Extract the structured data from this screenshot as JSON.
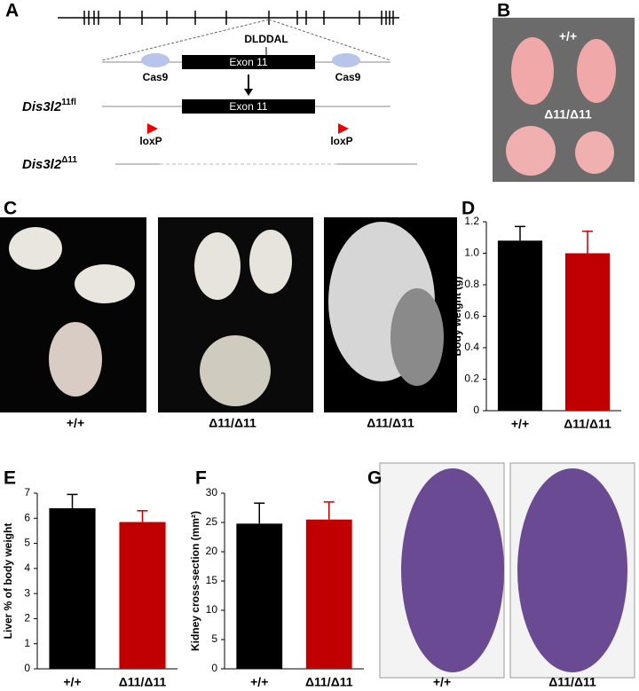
{
  "panel_labels": [
    "A",
    "B",
    "C",
    "D",
    "E",
    "F",
    "G"
  ],
  "diagram": {
    "motif": "DLDDAL",
    "exon_top": "Exon 11",
    "exon_fl": "Exon 11",
    "cas9_left": "Cas9",
    "cas9_right": "Cas9",
    "allele_fl": "Dis3l2",
    "allele_fl_sup": "11fl",
    "loxp_left": "loxP",
    "loxp_right": "loxP",
    "allele_del": "Dis3l2",
    "allele_del_sup": "Δ11"
  },
  "photo_labels": {
    "b_top": "+/+",
    "b_bottom": "Δ11/Δ11",
    "c": [
      "+/+",
      "Δ11/Δ11",
      "Δ11/Δ11"
    ],
    "g": [
      "+/+",
      "Δ11/Δ11"
    ]
  },
  "chart_data": [
    {
      "type": "bar",
      "y_label": "Body weight (g)",
      "categories": [
        "+/+",
        "Δ11/Δ11"
      ],
      "values": [
        1.08,
        1.0
      ],
      "errors": [
        0.09,
        0.14
      ],
      "colors": [
        "#000000",
        "#c00000"
      ],
      "ylim": [
        0,
        1.2
      ],
      "yticks": [
        0,
        0.2,
        0.4,
        0.6,
        0.8,
        {
          "value": 1,
          "label": "1.0"
        },
        1.2
      ]
    },
    {
      "type": "bar",
      "y_label": "Liver % of body weight",
      "categories": [
        "+/+",
        "Δ11/Δ11"
      ],
      "values": [
        6.4,
        5.85
      ],
      "errors": [
        0.55,
        0.45
      ],
      "colors": [
        "#000000",
        "#c00000"
      ],
      "ylim": [
        0,
        7
      ],
      "yticks": [
        0,
        1,
        2,
        3,
        4,
        5,
        6,
        7
      ]
    },
    {
      "type": "bar",
      "y_label": "Kidney cross-section (mm²)",
      "categories": [
        "+/+",
        "Δ11/Δ11"
      ],
      "values": [
        24.8,
        25.5
      ],
      "errors": [
        3.5,
        3.0
      ],
      "colors": [
        "#000000",
        "#c00000"
      ],
      "ylim": [
        0,
        30
      ],
      "yticks": [
        0,
        5,
        10,
        15,
        20,
        25,
        30
      ]
    }
  ]
}
